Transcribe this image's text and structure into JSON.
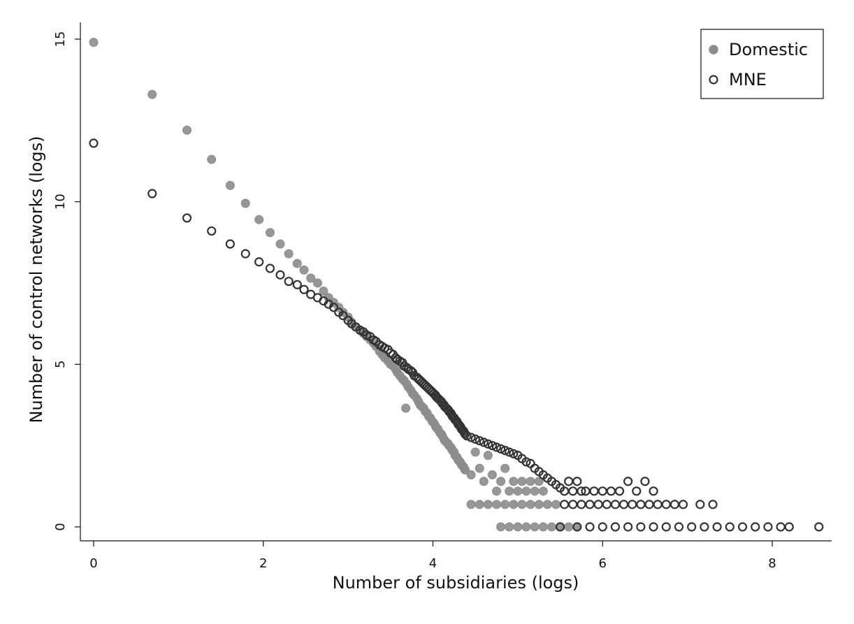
{
  "chart_data": {
    "type": "scatter",
    "xlabel": "Number of subsidiaries (logs)",
    "ylabel": "Number of control networks (logs)",
    "xlim": [
      0,
      8.6
    ],
    "ylim": [
      -0.3,
      15.5
    ],
    "x_ticks": [
      0,
      2,
      4,
      6,
      8
    ],
    "y_ticks": [
      0,
      5,
      10,
      15
    ],
    "x_tick_labels": [
      "0",
      "2",
      "4",
      "6",
      "8"
    ],
    "y_tick_labels": [
      "0",
      "5",
      "10",
      "15"
    ],
    "grid": false,
    "legend_position": "top-right",
    "series": [
      {
        "name": "Domestic",
        "marker": "filled-circle",
        "color": "#8c8c8c",
        "points": [
          [
            0,
            14.9
          ],
          [
            0.69,
            13.3
          ],
          [
            1.1,
            12.2
          ],
          [
            1.39,
            11.3
          ],
          [
            1.61,
            10.5
          ],
          [
            1.79,
            9.95
          ],
          [
            1.95,
            9.45
          ],
          [
            2.08,
            9.05
          ],
          [
            2.2,
            8.7
          ],
          [
            2.3,
            8.4
          ],
          [
            2.4,
            8.1
          ],
          [
            2.48,
            7.9
          ],
          [
            2.56,
            7.65
          ],
          [
            2.64,
            7.5
          ],
          [
            2.71,
            7.25
          ],
          [
            2.77,
            7.05
          ],
          [
            2.83,
            6.9
          ],
          [
            2.89,
            6.75
          ],
          [
            2.94,
            6.6
          ],
          [
            3.0,
            6.45
          ],
          [
            3.04,
            6.3
          ],
          [
            3.09,
            6.15
          ],
          [
            3.14,
            6.05
          ],
          [
            3.18,
            5.95
          ],
          [
            3.22,
            5.85
          ],
          [
            3.26,
            5.75
          ],
          [
            3.3,
            5.65
          ],
          [
            3.33,
            5.55
          ],
          [
            3.37,
            5.4
          ],
          [
            3.4,
            5.3
          ],
          [
            3.43,
            5.2
          ],
          [
            3.47,
            5.1
          ],
          [
            3.5,
            5.0
          ],
          [
            3.53,
            4.95
          ],
          [
            3.56,
            4.85
          ],
          [
            3.58,
            4.75
          ],
          [
            3.61,
            4.65
          ],
          [
            3.64,
            4.55
          ],
          [
            3.66,
            4.5
          ],
          [
            3.69,
            4.4
          ],
          [
            3.71,
            4.3
          ],
          [
            3.74,
            4.2
          ],
          [
            3.76,
            4.1
          ],
          [
            3.78,
            4.05
          ],
          [
            3.81,
            3.95
          ],
          [
            3.83,
            3.85
          ],
          [
            3.85,
            3.75
          ],
          [
            3.87,
            3.7
          ],
          [
            3.89,
            3.65
          ],
          [
            3.91,
            3.55
          ],
          [
            3.93,
            3.5
          ],
          [
            3.95,
            3.4
          ],
          [
            3.97,
            3.35
          ],
          [
            3.99,
            3.25
          ],
          [
            4.01,
            3.2
          ],
          [
            4.03,
            3.1
          ],
          [
            4.04,
            3.05
          ],
          [
            4.06,
            3.0
          ],
          [
            4.08,
            2.9
          ],
          [
            4.1,
            2.85
          ],
          [
            4.11,
            2.8
          ],
          [
            4.13,
            2.7
          ],
          [
            4.14,
            2.65
          ],
          [
            4.16,
            2.6
          ],
          [
            4.18,
            2.55
          ],
          [
            4.19,
            2.5
          ],
          [
            4.21,
            2.45
          ],
          [
            4.22,
            2.4
          ],
          [
            4.23,
            2.35
          ],
          [
            4.25,
            2.3
          ],
          [
            4.26,
            2.2
          ],
          [
            4.28,
            2.15
          ],
          [
            4.29,
            2.1
          ],
          [
            4.3,
            2.05
          ],
          [
            4.32,
            2.0
          ],
          [
            4.33,
            1.95
          ],
          [
            4.34,
            1.9
          ],
          [
            4.36,
            1.85
          ],
          [
            4.37,
            1.8
          ],
          [
            4.38,
            1.75
          ],
          [
            3.68,
            3.65
          ],
          [
            4.45,
            1.6
          ],
          [
            4.5,
            2.3
          ],
          [
            4.55,
            1.8
          ],
          [
            4.6,
            1.4
          ],
          [
            4.65,
            2.2
          ],
          [
            4.7,
            1.6
          ],
          [
            4.75,
            1.1
          ],
          [
            4.8,
            1.4
          ],
          [
            4.85,
            1.8
          ],
          [
            4.9,
            1.1
          ],
          [
            4.95,
            1.4
          ],
          [
            5.0,
            1.1
          ],
          [
            5.05,
            1.4
          ],
          [
            5.1,
            1.1
          ],
          [
            5.15,
            1.4
          ],
          [
            5.2,
            1.1
          ],
          [
            5.25,
            1.4
          ],
          [
            5.3,
            1.1
          ],
          [
            4.45,
            0.69
          ],
          [
            4.55,
            0.69
          ],
          [
            4.65,
            0.69
          ],
          [
            4.75,
            0.69
          ],
          [
            4.85,
            0.69
          ],
          [
            4.95,
            0.69
          ],
          [
            5.05,
            0.69
          ],
          [
            5.15,
            0.69
          ],
          [
            5.25,
            0.69
          ],
          [
            5.35,
            0.69
          ],
          [
            5.45,
            0.69
          ],
          [
            4.8,
            0
          ],
          [
            4.9,
            0
          ],
          [
            5.0,
            0
          ],
          [
            5.1,
            0
          ],
          [
            5.2,
            0
          ],
          [
            5.3,
            0
          ],
          [
            5.4,
            0
          ],
          [
            5.5,
            0
          ],
          [
            5.6,
            0
          ],
          [
            5.7,
            0
          ]
        ]
      },
      {
        "name": "MNE",
        "marker": "hollow-circle",
        "color": "#333333",
        "points": [
          [
            0,
            11.8
          ],
          [
            0.69,
            10.25
          ],
          [
            1.1,
            9.5
          ],
          [
            1.39,
            9.1
          ],
          [
            1.61,
            8.7
          ],
          [
            1.79,
            8.4
          ],
          [
            1.95,
            8.15
          ],
          [
            2.08,
            7.95
          ],
          [
            2.2,
            7.75
          ],
          [
            2.3,
            7.55
          ],
          [
            2.4,
            7.45
          ],
          [
            2.48,
            7.3
          ],
          [
            2.56,
            7.15
          ],
          [
            2.64,
            7.05
          ],
          [
            2.71,
            6.95
          ],
          [
            2.77,
            6.85
          ],
          [
            2.83,
            6.75
          ],
          [
            2.89,
            6.6
          ],
          [
            2.94,
            6.5
          ],
          [
            3.0,
            6.35
          ],
          [
            3.04,
            6.25
          ],
          [
            3.09,
            6.15
          ],
          [
            3.14,
            6.05
          ],
          [
            3.18,
            6.0
          ],
          [
            3.22,
            5.9
          ],
          [
            3.26,
            5.85
          ],
          [
            3.3,
            5.75
          ],
          [
            3.33,
            5.7
          ],
          [
            3.37,
            5.6
          ],
          [
            3.4,
            5.55
          ],
          [
            3.43,
            5.5
          ],
          [
            3.47,
            5.45
          ],
          [
            3.5,
            5.35
          ],
          [
            3.53,
            5.3
          ],
          [
            3.56,
            5.2
          ],
          [
            3.58,
            5.15
          ],
          [
            3.61,
            5.1
          ],
          [
            3.64,
            5.05
          ],
          [
            3.66,
            4.95
          ],
          [
            3.69,
            4.9
          ],
          [
            3.71,
            4.85
          ],
          [
            3.74,
            4.8
          ],
          [
            3.76,
            4.75
          ],
          [
            3.78,
            4.65
          ],
          [
            3.81,
            4.6
          ],
          [
            3.83,
            4.55
          ],
          [
            3.85,
            4.5
          ],
          [
            3.87,
            4.45
          ],
          [
            3.89,
            4.4
          ],
          [
            3.91,
            4.35
          ],
          [
            3.93,
            4.3
          ],
          [
            3.95,
            4.25
          ],
          [
            3.97,
            4.2
          ],
          [
            3.99,
            4.15
          ],
          [
            4.01,
            4.1
          ],
          [
            4.03,
            4.05
          ],
          [
            4.04,
            4.0
          ],
          [
            4.06,
            3.95
          ],
          [
            4.08,
            3.9
          ],
          [
            4.1,
            3.85
          ],
          [
            4.11,
            3.8
          ],
          [
            4.13,
            3.75
          ],
          [
            4.14,
            3.7
          ],
          [
            4.16,
            3.65
          ],
          [
            4.18,
            3.6
          ],
          [
            4.19,
            3.55
          ],
          [
            4.21,
            3.5
          ],
          [
            4.22,
            3.45
          ],
          [
            4.23,
            3.4
          ],
          [
            4.25,
            3.35
          ],
          [
            4.26,
            3.3
          ],
          [
            4.28,
            3.25
          ],
          [
            4.29,
            3.2
          ],
          [
            4.3,
            3.15
          ],
          [
            4.32,
            3.1
          ],
          [
            4.33,
            3.05
          ],
          [
            4.34,
            3.0
          ],
          [
            4.36,
            2.95
          ],
          [
            4.37,
            2.9
          ],
          [
            4.38,
            2.85
          ],
          [
            4.4,
            2.8
          ],
          [
            4.45,
            2.75
          ],
          [
            4.5,
            2.7
          ],
          [
            4.55,
            2.65
          ],
          [
            4.6,
            2.6
          ],
          [
            4.65,
            2.55
          ],
          [
            4.7,
            2.5
          ],
          [
            4.75,
            2.45
          ],
          [
            4.8,
            2.4
          ],
          [
            4.85,
            2.35
          ],
          [
            4.9,
            2.3
          ],
          [
            4.95,
            2.25
          ],
          [
            5.0,
            2.2
          ],
          [
            5.05,
            2.1
          ],
          [
            5.1,
            2.0
          ],
          [
            5.15,
            1.95
          ],
          [
            5.2,
            1.8
          ],
          [
            5.25,
            1.7
          ],
          [
            5.3,
            1.6
          ],
          [
            5.35,
            1.5
          ],
          [
            5.4,
            1.4
          ],
          [
            5.45,
            1.3
          ],
          [
            5.5,
            1.2
          ],
          [
            5.55,
            1.1
          ],
          [
            5.6,
            1.4
          ],
          [
            5.65,
            1.1
          ],
          [
            5.7,
            1.4
          ],
          [
            5.75,
            1.1
          ],
          [
            5.8,
            1.1
          ],
          [
            5.9,
            1.1
          ],
          [
            6.0,
            1.1
          ],
          [
            6.1,
            1.1
          ],
          [
            6.2,
            1.1
          ],
          [
            6.3,
            1.4
          ],
          [
            6.4,
            1.1
          ],
          [
            6.5,
            1.4
          ],
          [
            6.6,
            1.1
          ],
          [
            5.55,
            0.69
          ],
          [
            5.65,
            0.69
          ],
          [
            5.75,
            0.69
          ],
          [
            5.85,
            0.69
          ],
          [
            5.95,
            0.69
          ],
          [
            6.05,
            0.69
          ],
          [
            6.15,
            0.69
          ],
          [
            6.25,
            0.69
          ],
          [
            6.35,
            0.69
          ],
          [
            6.45,
            0.69
          ],
          [
            6.55,
            0.69
          ],
          [
            6.65,
            0.69
          ],
          [
            6.75,
            0.69
          ],
          [
            6.85,
            0.69
          ],
          [
            6.95,
            0.69
          ],
          [
            7.15,
            0.69
          ],
          [
            7.3,
            0.69
          ],
          [
            5.5,
            0
          ],
          [
            5.7,
            0
          ],
          [
            5.85,
            0
          ],
          [
            6.0,
            0
          ],
          [
            6.15,
            0
          ],
          [
            6.3,
            0
          ],
          [
            6.45,
            0
          ],
          [
            6.6,
            0
          ],
          [
            6.75,
            0
          ],
          [
            6.9,
            0
          ],
          [
            7.05,
            0
          ],
          [
            7.2,
            0
          ],
          [
            7.35,
            0
          ],
          [
            7.5,
            0
          ],
          [
            7.65,
            0
          ],
          [
            7.8,
            0
          ],
          [
            7.95,
            0
          ],
          [
            8.1,
            0
          ],
          [
            8.2,
            0
          ],
          [
            8.55,
            0
          ]
        ]
      }
    ]
  }
}
